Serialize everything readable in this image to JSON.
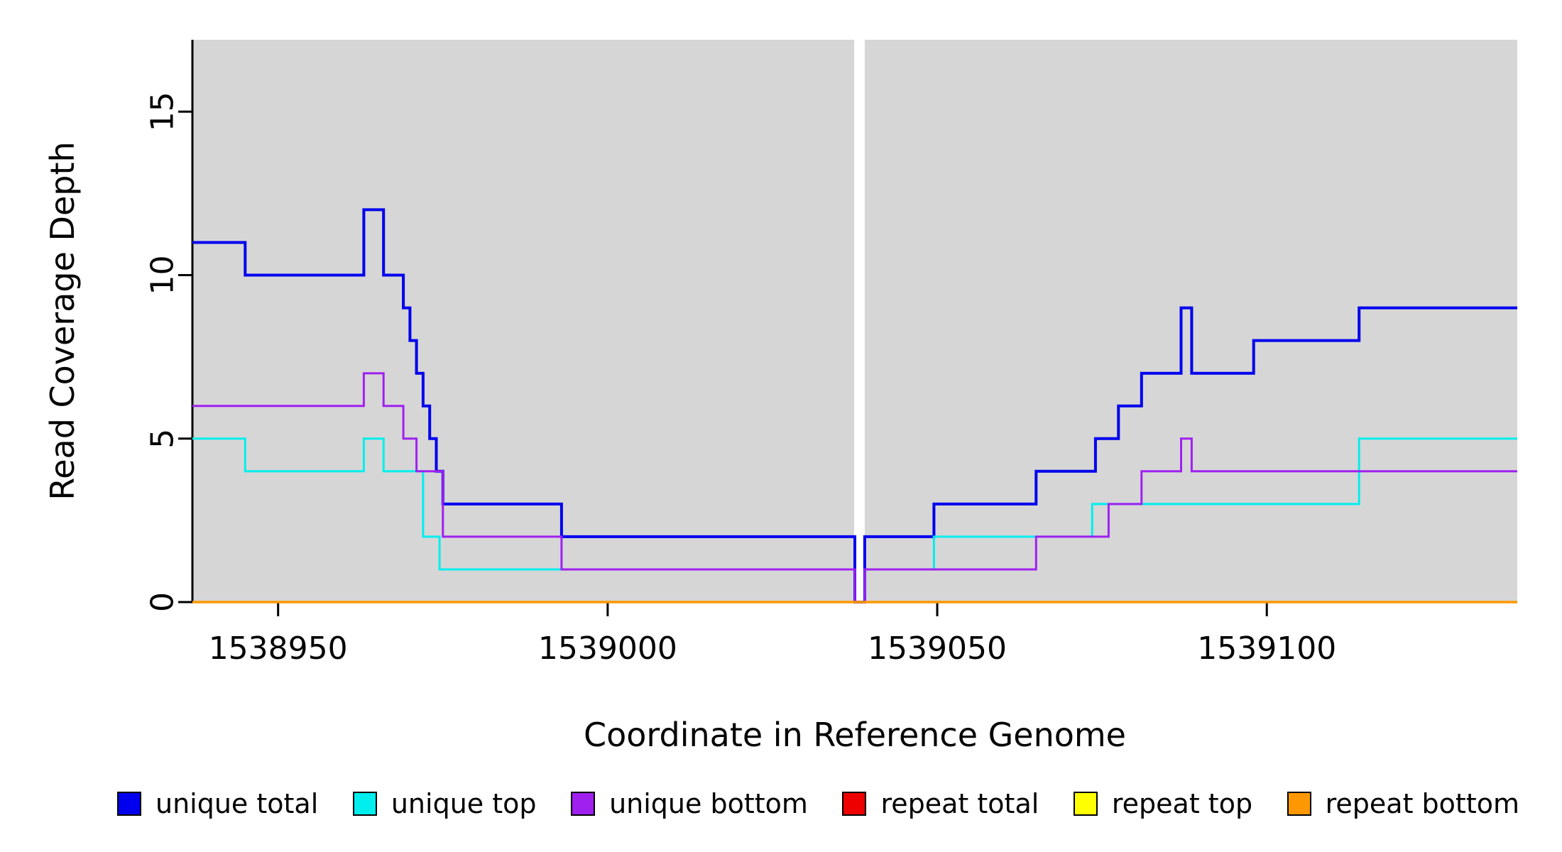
{
  "chart_data": {
    "type": "line",
    "subtype": "step",
    "title": "",
    "xlabel": "Coordinate in Reference Genome",
    "ylabel": "Read Coverage Depth",
    "xlim": [
      1538937,
      1539138
    ],
    "ylim": [
      0,
      17.2
    ],
    "x_ticks": [
      1538950,
      1539000,
      1539050,
      1539100
    ],
    "y_ticks": [
      0,
      5,
      10,
      15
    ],
    "plot_background": "#d6d6d6",
    "page_background": "#ffffff",
    "axis_color": "#000000",
    "grid": "off",
    "legend_position": "bottom",
    "gap_region": {
      "x_start": 1539037.4,
      "x_end": 1539039.0,
      "color": "#ffffff"
    },
    "series": [
      {
        "name": "unique total",
        "color": "#0000EE",
        "line_width": 4,
        "steps": [
          [
            1538937,
            11
          ],
          [
            1538945,
            10
          ],
          [
            1538963,
            12
          ],
          [
            1538966,
            10
          ],
          [
            1538969,
            9
          ],
          [
            1538970,
            8
          ],
          [
            1538971,
            7
          ],
          [
            1538972,
            6
          ],
          [
            1538973,
            5
          ],
          [
            1538974,
            4
          ],
          [
            1538975,
            3
          ],
          [
            1538993,
            2
          ],
          [
            1539037.5,
            0
          ],
          [
            1539039,
            2
          ],
          [
            1539049.5,
            3
          ],
          [
            1539065,
            4
          ],
          [
            1539074,
            5
          ],
          [
            1539077.5,
            6
          ],
          [
            1539081,
            7
          ],
          [
            1539087,
            9
          ],
          [
            1539088.6,
            7
          ],
          [
            1539098,
            8
          ],
          [
            1539114,
            9
          ]
        ]
      },
      {
        "name": "unique top",
        "color": "#00EEEE",
        "line_width": 3,
        "steps": [
          [
            1538937,
            5
          ],
          [
            1538945,
            4
          ],
          [
            1538963,
            5
          ],
          [
            1538966,
            4
          ],
          [
            1538972,
            2
          ],
          [
            1538974.5,
            1
          ],
          [
            1539037.5,
            0
          ],
          [
            1539039,
            1
          ],
          [
            1539049.5,
            2
          ],
          [
            1539073.5,
            3
          ],
          [
            1539114,
            5
          ]
        ]
      },
      {
        "name": "unique bottom",
        "color": "#A020F0",
        "line_width": 3,
        "steps": [
          [
            1538937,
            6
          ],
          [
            1538963,
            7
          ],
          [
            1538966,
            6
          ],
          [
            1538969,
            5
          ],
          [
            1538971,
            4
          ],
          [
            1538975,
            2
          ],
          [
            1538993,
            1
          ],
          [
            1539037.5,
            0
          ],
          [
            1539039,
            1
          ],
          [
            1539065,
            2
          ],
          [
            1539076,
            3
          ],
          [
            1539081,
            4
          ],
          [
            1539087,
            5
          ],
          [
            1539088.6,
            4
          ]
        ]
      },
      {
        "name": "repeat total",
        "color": "#EE0000",
        "line_width": 3,
        "steps": [
          [
            1538937,
            0
          ]
        ]
      },
      {
        "name": "repeat top",
        "color": "#FFFF00",
        "line_width": 3,
        "steps": [
          [
            1538937,
            0
          ]
        ]
      },
      {
        "name": "repeat bottom",
        "color": "#FF9800",
        "line_width": 3.5,
        "steps": [
          [
            1538937,
            0
          ]
        ]
      }
    ]
  }
}
